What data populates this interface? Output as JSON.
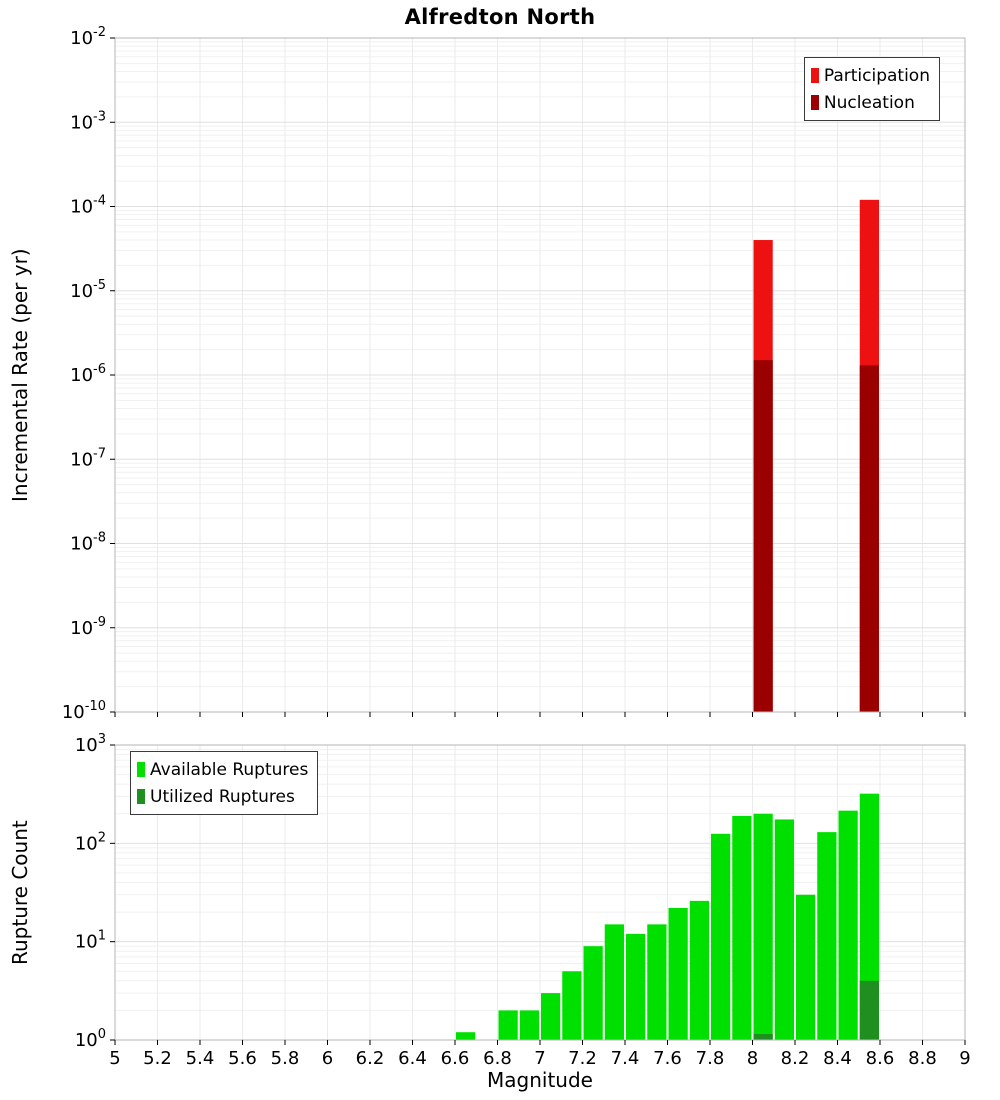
{
  "title": "Alfredton North",
  "chart_data": [
    {
      "type": "bar",
      "title": "Alfredton North",
      "xlabel": "",
      "ylabel": "Incremental Rate (per yr)",
      "xlim": [
        5,
        9
      ],
      "x_tick_step": 0.2,
      "y_scale": "log",
      "ylim": [
        1e-10,
        0.01
      ],
      "ylim_exp": [
        -10,
        -2
      ],
      "bin_width": 0.1,
      "grid": true,
      "legend_position": "top-right",
      "series": [
        {
          "name": "Participation",
          "color": "#ee1111",
          "bars": [
            {
              "x": 8.0,
              "value": 4e-05
            },
            {
              "x": 8.5,
              "value": 0.00012
            }
          ]
        },
        {
          "name": "Nucleation",
          "color": "#9b0000",
          "bars": [
            {
              "x": 8.0,
              "value": 1.5e-06
            },
            {
              "x": 8.5,
              "value": 1.3e-06
            }
          ]
        }
      ]
    },
    {
      "type": "bar",
      "title": "",
      "xlabel": "Magnitude",
      "ylabel": "Rupture Count",
      "xlim": [
        5,
        9
      ],
      "x_tick_step": 0.2,
      "y_scale": "log",
      "ylim": [
        1,
        1000
      ],
      "ylim_exp": [
        0,
        3
      ],
      "bin_width": 0.1,
      "grid": true,
      "legend_position": "top-left",
      "series": [
        {
          "name": "Available Ruptures",
          "color": "#00e000",
          "bars": [
            {
              "x": 6.6,
              "value": 1.2
            },
            {
              "x": 6.8,
              "value": 2
            },
            {
              "x": 6.9,
              "value": 2
            },
            {
              "x": 7.0,
              "value": 3
            },
            {
              "x": 7.1,
              "value": 5
            },
            {
              "x": 7.2,
              "value": 9
            },
            {
              "x": 7.3,
              "value": 15
            },
            {
              "x": 7.4,
              "value": 12
            },
            {
              "x": 7.5,
              "value": 15
            },
            {
              "x": 7.6,
              "value": 22
            },
            {
              "x": 7.7,
              "value": 26
            },
            {
              "x": 7.8,
              "value": 125
            },
            {
              "x": 7.9,
              "value": 190
            },
            {
              "x": 8.0,
              "value": 200
            },
            {
              "x": 8.1,
              "value": 175
            },
            {
              "x": 8.2,
              "value": 30
            },
            {
              "x": 8.3,
              "value": 130
            },
            {
              "x": 8.4,
              "value": 215
            },
            {
              "x": 8.5,
              "value": 320
            }
          ]
        },
        {
          "name": "Utilized Ruptures",
          "color": "#1f8f1f",
          "bars": [
            {
              "x": 8.0,
              "value": 1.15
            },
            {
              "x": 8.5,
              "value": 4
            }
          ]
        }
      ]
    }
  ]
}
